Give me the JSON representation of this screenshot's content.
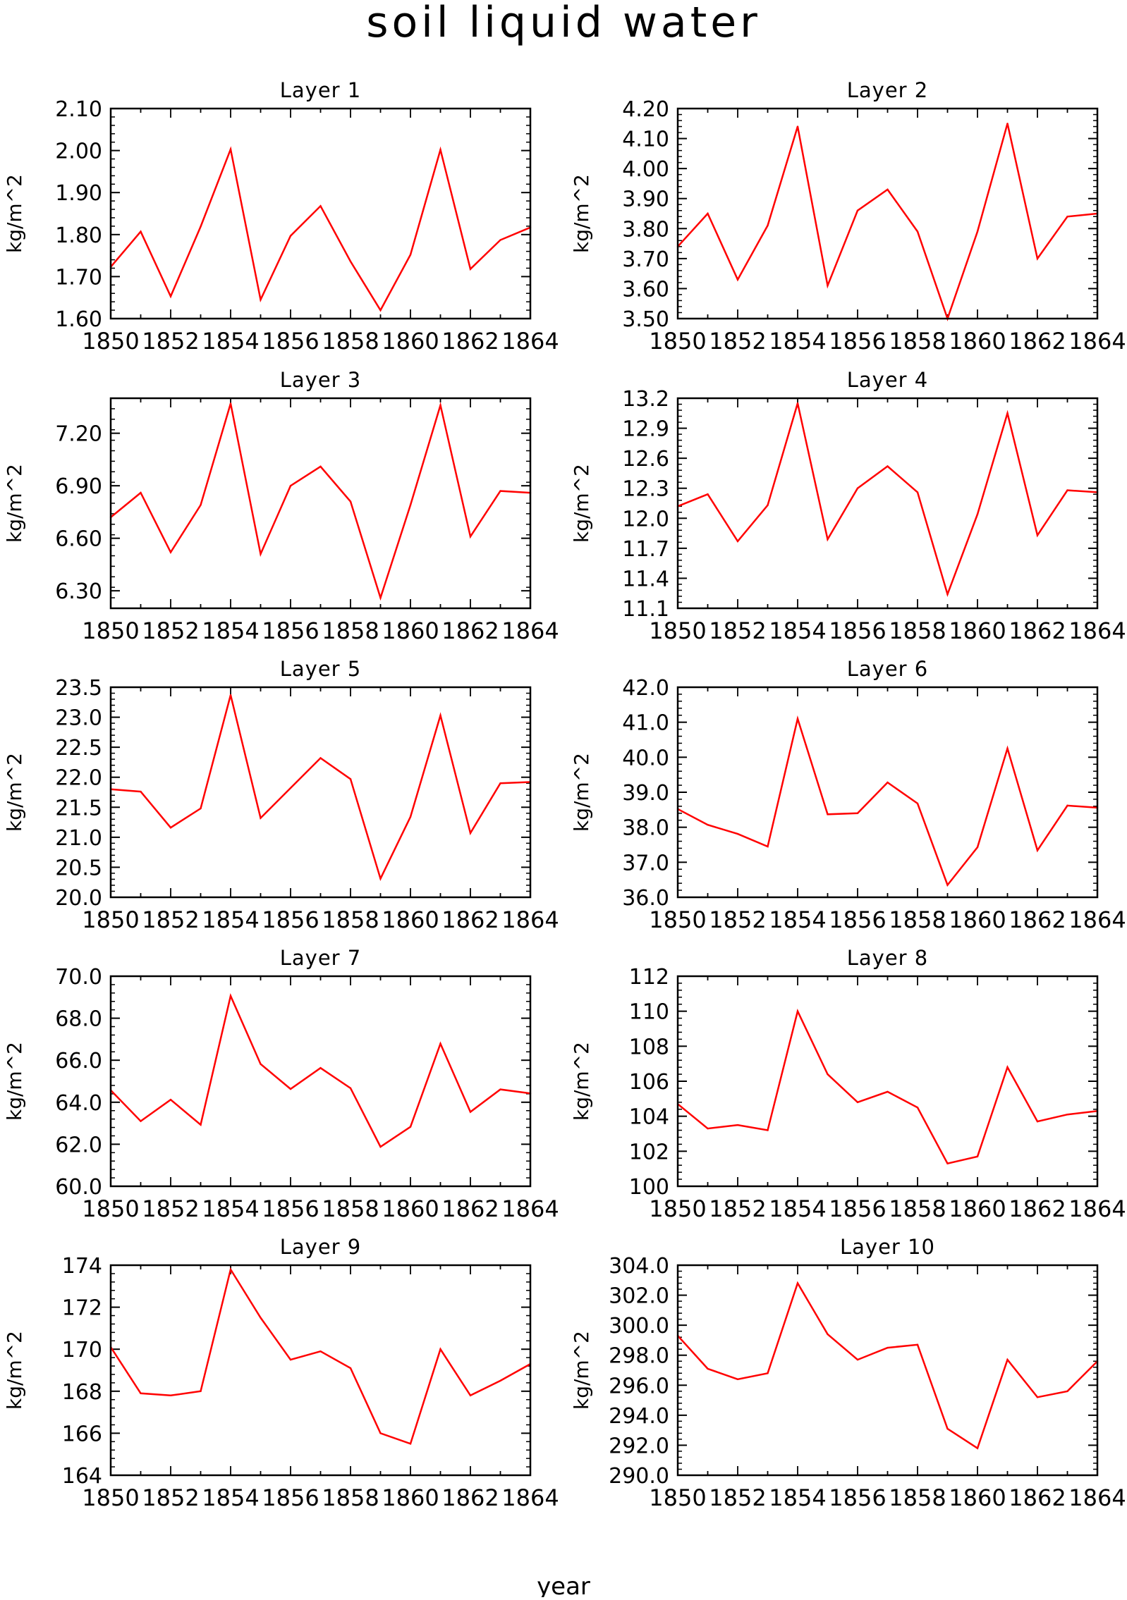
{
  "title": "soil liquid water",
  "xlabel": "year",
  "line_color": "#ff0000",
  "chart_data": [
    {
      "type": "line",
      "title": "Layer 1",
      "ylabel": "kg/m^2",
      "x": [
        1850,
        1851,
        1852,
        1853,
        1854,
        1855,
        1856,
        1857,
        1858,
        1859,
        1860,
        1861,
        1862,
        1863,
        1864
      ],
      "ylim": [
        1.6,
        2.1
      ],
      "xlim": [
        1850,
        1864
      ],
      "yticks": [
        "1.60",
        "1.70",
        "1.80",
        "1.90",
        "2.00",
        "2.10"
      ],
      "xticks": [
        "1850",
        "1852",
        "1854",
        "1856",
        "1858",
        "1860",
        "1862",
        "1864"
      ],
      "values": [
        1.723,
        1.807,
        1.653,
        1.819,
        2.003,
        1.645,
        1.797,
        1.868,
        1.736,
        1.62,
        1.752,
        2.002,
        1.718,
        1.787,
        1.817
      ]
    },
    {
      "type": "line",
      "title": "Layer 2",
      "ylabel": "kg/m^2",
      "x": [
        1850,
        1851,
        1852,
        1853,
        1854,
        1855,
        1856,
        1857,
        1858,
        1859,
        1860,
        1861,
        1862,
        1863,
        1864
      ],
      "ylim": [
        3.5,
        4.2
      ],
      "xlim": [
        1850,
        1864
      ],
      "yticks": [
        "3.50",
        "3.60",
        "3.70",
        "3.80",
        "3.90",
        "4.00",
        "4.10",
        "4.20"
      ],
      "xticks": [
        "1850",
        "1852",
        "1854",
        "1856",
        "1858",
        "1860",
        "1862",
        "1864"
      ],
      "values": [
        3.74,
        3.85,
        3.63,
        3.81,
        4.14,
        3.61,
        3.86,
        3.93,
        3.79,
        3.5,
        3.79,
        4.15,
        3.7,
        3.84,
        3.85
      ]
    },
    {
      "type": "line",
      "title": "Layer 3",
      "ylabel": "kg/m^2",
      "x": [
        1850,
        1851,
        1852,
        1853,
        1854,
        1855,
        1856,
        1857,
        1858,
        1859,
        1860,
        1861,
        1862,
        1863,
        1864
      ],
      "ylim": [
        6.2,
        7.4
      ],
      "xlim": [
        1850,
        1864
      ],
      "yticks": [
        "6.30",
        "6.60",
        "6.90",
        "7.20"
      ],
      "xticks": [
        "1850",
        "1852",
        "1854",
        "1856",
        "1858",
        "1860",
        "1862",
        "1864"
      ],
      "values": [
        6.72,
        6.86,
        6.52,
        6.79,
        7.37,
        6.51,
        6.9,
        7.01,
        6.81,
        6.26,
        6.79,
        7.36,
        6.61,
        6.87,
        6.86
      ]
    },
    {
      "type": "line",
      "title": "Layer 4",
      "ylabel": "kg/m^2",
      "x": [
        1850,
        1851,
        1852,
        1853,
        1854,
        1855,
        1856,
        1857,
        1858,
        1859,
        1860,
        1861,
        1862,
        1863,
        1864
      ],
      "ylim": [
        11.1,
        13.2
      ],
      "xlim": [
        1850,
        1864
      ],
      "yticks": [
        "11.1",
        "11.4",
        "11.7",
        "12.0",
        "12.3",
        "12.6",
        "12.9",
        "13.2"
      ],
      "xticks": [
        "1850",
        "1852",
        "1854",
        "1856",
        "1858",
        "1860",
        "1862",
        "1864"
      ],
      "values": [
        12.12,
        12.24,
        11.77,
        12.13,
        13.15,
        11.79,
        12.3,
        12.52,
        12.26,
        11.24,
        12.04,
        13.05,
        11.83,
        12.28,
        12.26
      ]
    },
    {
      "type": "line",
      "title": "Layer 5",
      "ylabel": "kg/m^2",
      "x": [
        1850,
        1851,
        1852,
        1853,
        1854,
        1855,
        1856,
        1857,
        1858,
        1859,
        1860,
        1861,
        1862,
        1863,
        1864
      ],
      "ylim": [
        20.0,
        23.5
      ],
      "xlim": [
        1850,
        1864
      ],
      "yticks": [
        "20.0",
        "20.5",
        "21.0",
        "21.5",
        "22.0",
        "22.5",
        "23.0",
        "23.5"
      ],
      "xticks": [
        "1850",
        "1852",
        "1854",
        "1856",
        "1858",
        "1860",
        "1862",
        "1864"
      ],
      "values": [
        21.8,
        21.76,
        21.16,
        21.48,
        23.37,
        21.32,
        21.82,
        22.32,
        21.97,
        20.31,
        21.34,
        23.03,
        21.07,
        21.9,
        21.92
      ]
    },
    {
      "type": "line",
      "title": "Layer 6",
      "ylabel": "kg/m^2",
      "x": [
        1850,
        1851,
        1852,
        1853,
        1854,
        1855,
        1856,
        1857,
        1858,
        1859,
        1860,
        1861,
        1862,
        1863,
        1864
      ],
      "ylim": [
        36.0,
        42.0
      ],
      "xlim": [
        1850,
        1864
      ],
      "yticks": [
        "36.0",
        "37.0",
        "38.0",
        "39.0",
        "40.0",
        "41.0",
        "42.0"
      ],
      "xticks": [
        "1850",
        "1852",
        "1854",
        "1856",
        "1858",
        "1860",
        "1862",
        "1864"
      ],
      "values": [
        38.52,
        38.07,
        37.81,
        37.45,
        41.1,
        38.37,
        38.4,
        39.28,
        38.68,
        36.35,
        37.43,
        40.25,
        37.34,
        38.62,
        38.56
      ]
    },
    {
      "type": "line",
      "title": "Layer 7",
      "ylabel": "kg/m^2",
      "x": [
        1850,
        1851,
        1852,
        1853,
        1854,
        1855,
        1856,
        1857,
        1858,
        1859,
        1860,
        1861,
        1862,
        1863,
        1864
      ],
      "ylim": [
        60.0,
        70.0
      ],
      "xlim": [
        1850,
        1864
      ],
      "yticks": [
        "60.0",
        "62.0",
        "64.0",
        "66.0",
        "68.0",
        "70.0"
      ],
      "xticks": [
        "1850",
        "1852",
        "1854",
        "1856",
        "1858",
        "1860",
        "1862",
        "1864"
      ],
      "values": [
        64.57,
        63.1,
        64.12,
        62.93,
        69.06,
        65.82,
        64.63,
        65.63,
        64.67,
        61.88,
        62.83,
        66.79,
        63.54,
        64.61,
        64.42
      ]
    },
    {
      "type": "line",
      "title": "Layer 8",
      "ylabel": "kg/m^2",
      "x": [
        1850,
        1851,
        1852,
        1853,
        1854,
        1855,
        1856,
        1857,
        1858,
        1859,
        1860,
        1861,
        1862,
        1863,
        1864
      ],
      "ylim": [
        100,
        112
      ],
      "xlim": [
        1850,
        1864
      ],
      "yticks": [
        "100",
        "102",
        "104",
        "106",
        "108",
        "110",
        "112"
      ],
      "xticks": [
        "1850",
        "1852",
        "1854",
        "1856",
        "1858",
        "1860",
        "1862",
        "1864"
      ],
      "values": [
        104.7,
        103.3,
        103.5,
        103.2,
        110.0,
        106.4,
        104.8,
        105.4,
        104.5,
        101.3,
        101.7,
        106.8,
        103.7,
        104.1,
        104.3
      ]
    },
    {
      "type": "line",
      "title": "Layer 9",
      "ylabel": "kg/m^2",
      "x": [
        1850,
        1851,
        1852,
        1853,
        1854,
        1855,
        1856,
        1857,
        1858,
        1859,
        1860,
        1861,
        1862,
        1863,
        1864
      ],
      "ylim": [
        164,
        174
      ],
      "xlim": [
        1850,
        1864
      ],
      "yticks": [
        "164",
        "166",
        "168",
        "170",
        "172",
        "174"
      ],
      "xticks": [
        "1850",
        "1852",
        "1854",
        "1856",
        "1858",
        "1860",
        "1862",
        "1864"
      ],
      "values": [
        170.1,
        167.9,
        167.8,
        168.0,
        173.8,
        171.5,
        169.5,
        169.9,
        169.1,
        166.0,
        165.5,
        170.0,
        167.8,
        168.5,
        169.3
      ]
    },
    {
      "type": "line",
      "title": "Layer 10",
      "ylabel": "kg/m^2",
      "x": [
        1850,
        1851,
        1852,
        1853,
        1854,
        1855,
        1856,
        1857,
        1858,
        1859,
        1860,
        1861,
        1862,
        1863,
        1864
      ],
      "ylim": [
        290.0,
        304.0
      ],
      "xlim": [
        1850,
        1864
      ],
      "yticks": [
        "290.0",
        "292.0",
        "294.0",
        "296.0",
        "298.0",
        "300.0",
        "302.0",
        "304.0"
      ],
      "xticks": [
        "1850",
        "1852",
        "1854",
        "1856",
        "1858",
        "1860",
        "1862",
        "1864"
      ],
      "values": [
        299.3,
        297.1,
        296.4,
        296.8,
        302.8,
        299.4,
        297.7,
        298.5,
        298.7,
        293.1,
        291.8,
        297.7,
        295.2,
        295.6,
        297.6
      ]
    }
  ]
}
